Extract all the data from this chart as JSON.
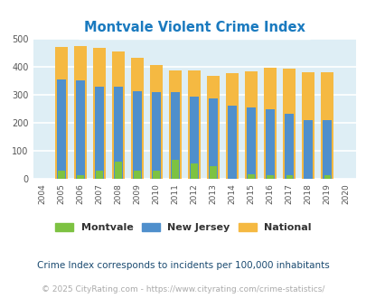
{
  "title": "Montvale Violent Crime Index",
  "years": [
    2004,
    2005,
    2006,
    2007,
    2008,
    2009,
    2010,
    2011,
    2012,
    2013,
    2014,
    2015,
    2016,
    2017,
    2018,
    2019,
    2020
  ],
  "montvale": [
    0,
    30,
    14,
    30,
    60,
    30,
    30,
    68,
    55,
    44,
    0,
    15,
    14,
    14,
    0,
    14,
    0
  ],
  "new_jersey": [
    0,
    355,
    350,
    330,
    330,
    312,
    310,
    310,
    292,
    288,
    261,
    255,
    248,
    231,
    211,
    208,
    0
  ],
  "national": [
    0,
    470,
    474,
    467,
    455,
    432,
    405,
    387,
    387,
    368,
    377,
    383,
    397,
    394,
    381,
    379,
    0
  ],
  "bar_width": 0.65,
  "colors": {
    "montvale": "#7dc242",
    "new_jersey": "#4f8fcc",
    "national": "#f5b942"
  },
  "plot_bg": "#deeef5",
  "fig_bg": "#ffffff",
  "ylabel_ticks": [
    0,
    100,
    200,
    300,
    400,
    500
  ],
  "ylim": [
    0,
    500
  ],
  "title_color": "#1a7abf",
  "legend_labels": [
    "Montvale",
    "New Jersey",
    "National"
  ],
  "subtitle": "Crime Index corresponds to incidents per 100,000 inhabitants",
  "footer": "© 2025 CityRating.com - https://www.cityrating.com/crime-statistics/",
  "subtitle_color": "#1a4a70",
  "footer_color": "#aaaaaa",
  "grid_color": "#ffffff",
  "xlim": [
    2003.5,
    2020.5
  ]
}
